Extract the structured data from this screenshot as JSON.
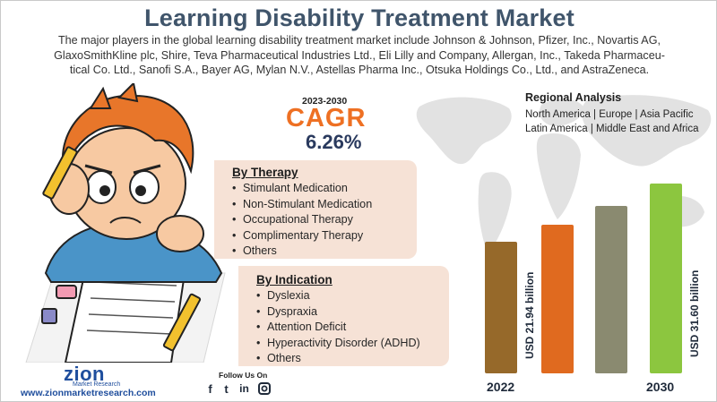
{
  "title": "Learning Disability Treatment Market",
  "intro_lines": [
    "The major players in the global learning disability treatment market include Johnson & Johnson, Pfizer, Inc., Novartis AG,",
    "GlaxoSmithKline plc, Shire, Teva Pharmaceutical Industries Ltd., Eli Lilly and Company, Allergan, Inc., Takeda Pharmaceu-",
    "tical Co. Ltd., Sanofi S.A., Bayer AG, Mylan N.V., Astellas Pharma Inc., Otsuka Holdings Co., Ltd., and AstraZeneca."
  ],
  "cagr": {
    "period": "2023-2030",
    "label": "CAGR",
    "value": "6.26%"
  },
  "regional": {
    "title": "Regional Analysis",
    "line1": "North America | Europe | Asia Pacific",
    "line2": "Latin America | Middle East and Africa"
  },
  "therapy": {
    "heading": "By Therapy",
    "items": [
      "Stimulant Medication",
      "Non-Stimulant Medication",
      "Occupational Therapy",
      "Complimentary Therapy",
      "Others"
    ]
  },
  "indication": {
    "heading": "By Indication",
    "items": [
      "Dyslexia",
      "Dyspraxia",
      "Attention Deficit",
      "Hyperactivity Disorder (ADHD)",
      "Others"
    ]
  },
  "chart_data": {
    "type": "bar",
    "categories": [
      "2022",
      "",
      "",
      "2030"
    ],
    "values": [
      21.94,
      24.7,
      27.8,
      31.6
    ],
    "data_labels": [
      "USD 21.94 billion",
      "",
      "",
      "USD 31.60 billion"
    ],
    "bar_colors": [
      "#96692a",
      "#e06a1f",
      "#8a8a70",
      "#8cc63f"
    ],
    "ylim": [
      0,
      31.6
    ]
  },
  "footer": {
    "brand": "zion",
    "brand_sub": "Market Research",
    "website": "www.zionmarketresearch.com",
    "follow": "Follow Us On",
    "social": [
      "f",
      "t",
      "in",
      "ig"
    ]
  },
  "colors": {
    "title": "#40556b",
    "cagr": "#ee7023",
    "panel": "#f6e2d6",
    "brand": "#1f4e9d"
  }
}
